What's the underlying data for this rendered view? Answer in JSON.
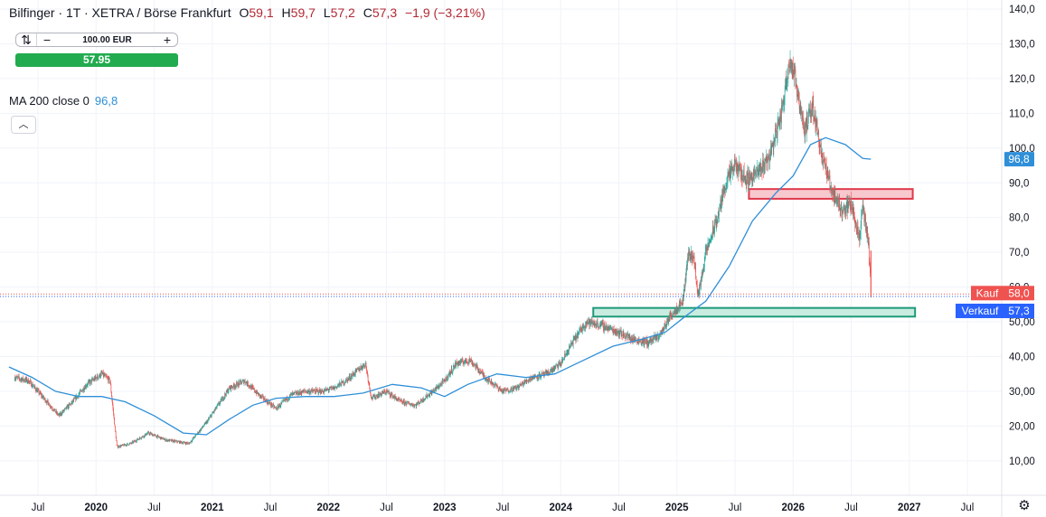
{
  "legend": {
    "symbol": "Bilfinger · 1T · XETRA / Börse Frankfurt",
    "open_label": "O",
    "open": "59,1",
    "high_label": "H",
    "high": "59,7",
    "low_label": "L",
    "low": "57,2",
    "close_label": "C",
    "close": "57,3",
    "change": "−1,9 (−3,21%)"
  },
  "order": {
    "quantity": "100.00 EUR",
    "minus": "−",
    "plus": "+",
    "reverse_icon": "swap-icon",
    "price": "57.95"
  },
  "indicator": {
    "name": "MA 200 close 0",
    "value": "96,8",
    "collapse_icon": "chevron-up-icon"
  },
  "settings_icon": "gear-icon",
  "colors": {
    "up": "#26a69a",
    "down": "#ef5350",
    "ma": "#2f8fd8",
    "kauf": "#ef5350",
    "verkauf": "#2962ff",
    "resistance_fill": "#f7c8ce",
    "resistance_border": "#e0394b",
    "support_fill": "#c8ecdf",
    "support_border": "#1e9a7a"
  },
  "chart_data": {
    "type": "candlestick",
    "y_axis": {
      "min": 0,
      "max": 140,
      "ticks": [
        "10,00",
        "20,00",
        "30,00",
        "40,00",
        "50,00",
        "60,0",
        "70,0",
        "80,0",
        "90,0",
        "100,0",
        "110,0",
        "120,0",
        "130,0",
        "140,0"
      ],
      "tick_values": [
        10,
        20,
        30,
        40,
        50,
        60,
        70,
        80,
        90,
        100,
        110,
        120,
        130,
        140
      ]
    },
    "x_axis": {
      "labels": [
        "Jul",
        "2020",
        "Jul",
        "2021",
        "Jul",
        "2022",
        "Jul",
        "2023",
        "Jul",
        "2024",
        "Jul",
        "2025",
        "Jul",
        "2026",
        "Jul",
        "2027",
        "Jul"
      ],
      "dates": [
        2019.5,
        2020.0,
        2020.5,
        2021.0,
        2021.5,
        2022.0,
        2022.5,
        2023.0,
        2023.5,
        2024.0,
        2024.5,
        2025.0,
        2025.5,
        2026.0,
        2026.5,
        2027.0,
        2027.5
      ]
    },
    "price_path": [
      [
        2019.3,
        34
      ],
      [
        2019.42,
        33
      ],
      [
        2019.55,
        28
      ],
      [
        2019.68,
        23
      ],
      [
        2019.8,
        27
      ],
      [
        2019.92,
        32
      ],
      [
        2020.05,
        35
      ],
      [
        2020.12,
        33
      ],
      [
        2020.18,
        14
      ],
      [
        2020.3,
        15
      ],
      [
        2020.45,
        18
      ],
      [
        2020.6,
        16
      ],
      [
        2020.8,
        15
      ],
      [
        2020.95,
        21
      ],
      [
        2021.05,
        26
      ],
      [
        2021.15,
        31
      ],
      [
        2021.28,
        33
      ],
      [
        2021.4,
        29
      ],
      [
        2021.55,
        25
      ],
      [
        2021.68,
        29
      ],
      [
        2021.8,
        30
      ],
      [
        2021.95,
        30
      ],
      [
        2022.05,
        31
      ],
      [
        2022.15,
        33
      ],
      [
        2022.25,
        36
      ],
      [
        2022.32,
        38
      ],
      [
        2022.37,
        28
      ],
      [
        2022.5,
        30
      ],
      [
        2022.62,
        27
      ],
      [
        2022.75,
        26
      ],
      [
        2022.9,
        30
      ],
      [
        2023.0,
        33
      ],
      [
        2023.1,
        38
      ],
      [
        2023.22,
        39
      ],
      [
        2023.35,
        34
      ],
      [
        2023.5,
        30
      ],
      [
        2023.62,
        31
      ],
      [
        2023.75,
        34
      ],
      [
        2023.88,
        35
      ],
      [
        2024.0,
        38
      ],
      [
        2024.1,
        44
      ],
      [
        2024.22,
        50
      ],
      [
        2024.35,
        49
      ],
      [
        2024.5,
        47
      ],
      [
        2024.62,
        45
      ],
      [
        2024.75,
        44
      ],
      [
        2024.85,
        46
      ],
      [
        2024.95,
        52
      ],
      [
        2025.05,
        56
      ],
      [
        2025.1,
        70
      ],
      [
        2025.15,
        68
      ],
      [
        2025.18,
        57
      ],
      [
        2025.25,
        70
      ],
      [
        2025.35,
        80
      ],
      [
        2025.42,
        90
      ],
      [
        2025.5,
        95
      ],
      [
        2025.6,
        91
      ],
      [
        2025.7,
        93
      ],
      [
        2025.8,
        98
      ],
      [
        2025.9,
        110
      ],
      [
        2025.97,
        126
      ],
      [
        2026.03,
        118
      ],
      [
        2026.1,
        105
      ],
      [
        2026.17,
        112
      ],
      [
        2026.25,
        98
      ],
      [
        2026.33,
        88
      ],
      [
        2026.42,
        82
      ],
      [
        2026.5,
        84
      ],
      [
        2026.57,
        74
      ],
      [
        2026.6,
        83
      ],
      [
        2026.65,
        72
      ],
      [
        2026.67,
        57.3
      ]
    ],
    "moving_average": {
      "name": "MA 200 close 0",
      "points": [
        [
          2019.25,
          37
        ],
        [
          2019.45,
          34
        ],
        [
          2019.65,
          30
        ],
        [
          2019.85,
          28.5
        ],
        [
          2020.05,
          28.5
        ],
        [
          2020.25,
          27
        ],
        [
          2020.5,
          23
        ],
        [
          2020.75,
          18
        ],
        [
          2020.95,
          17.5
        ],
        [
          2021.15,
          22
        ],
        [
          2021.35,
          26
        ],
        [
          2021.55,
          28
        ],
        [
          2021.8,
          28.5
        ],
        [
          2022.05,
          28.5
        ],
        [
          2022.3,
          29.5
        ],
        [
          2022.55,
          32
        ],
        [
          2022.8,
          31
        ],
        [
          2023.0,
          28.5
        ],
        [
          2023.2,
          32
        ],
        [
          2023.45,
          35
        ],
        [
          2023.7,
          34
        ],
        [
          2023.95,
          35
        ],
        [
          2024.2,
          39
        ],
        [
          2024.45,
          43
        ],
        [
          2024.7,
          45
        ],
        [
          2024.9,
          47
        ],
        [
          2025.05,
          51
        ],
        [
          2025.25,
          56
        ],
        [
          2025.45,
          66
        ],
        [
          2025.65,
          79
        ],
        [
          2025.85,
          87
        ],
        [
          2026.0,
          92
        ],
        [
          2026.15,
          101
        ],
        [
          2026.28,
          103
        ],
        [
          2026.45,
          101
        ],
        [
          2026.6,
          97
        ],
        [
          2026.67,
          96.8
        ]
      ]
    },
    "zones": [
      {
        "kind": "resistance",
        "x0": 2025.62,
        "x1": 2027.03,
        "y0": 85.4,
        "y1": 88.2
      },
      {
        "kind": "support",
        "x0": 2024.28,
        "x1": 2027.05,
        "y0": 51.5,
        "y1": 54.0
      }
    ],
    "price_lines": [
      {
        "label": "Kauf",
        "value": 58.0,
        "value_text": "58,0"
      },
      {
        "label": "Verkauf",
        "value": 57.3,
        "value_text": "57,3"
      }
    ],
    "ma_last_text": "96,8",
    "ma_last_value": 96.8
  }
}
